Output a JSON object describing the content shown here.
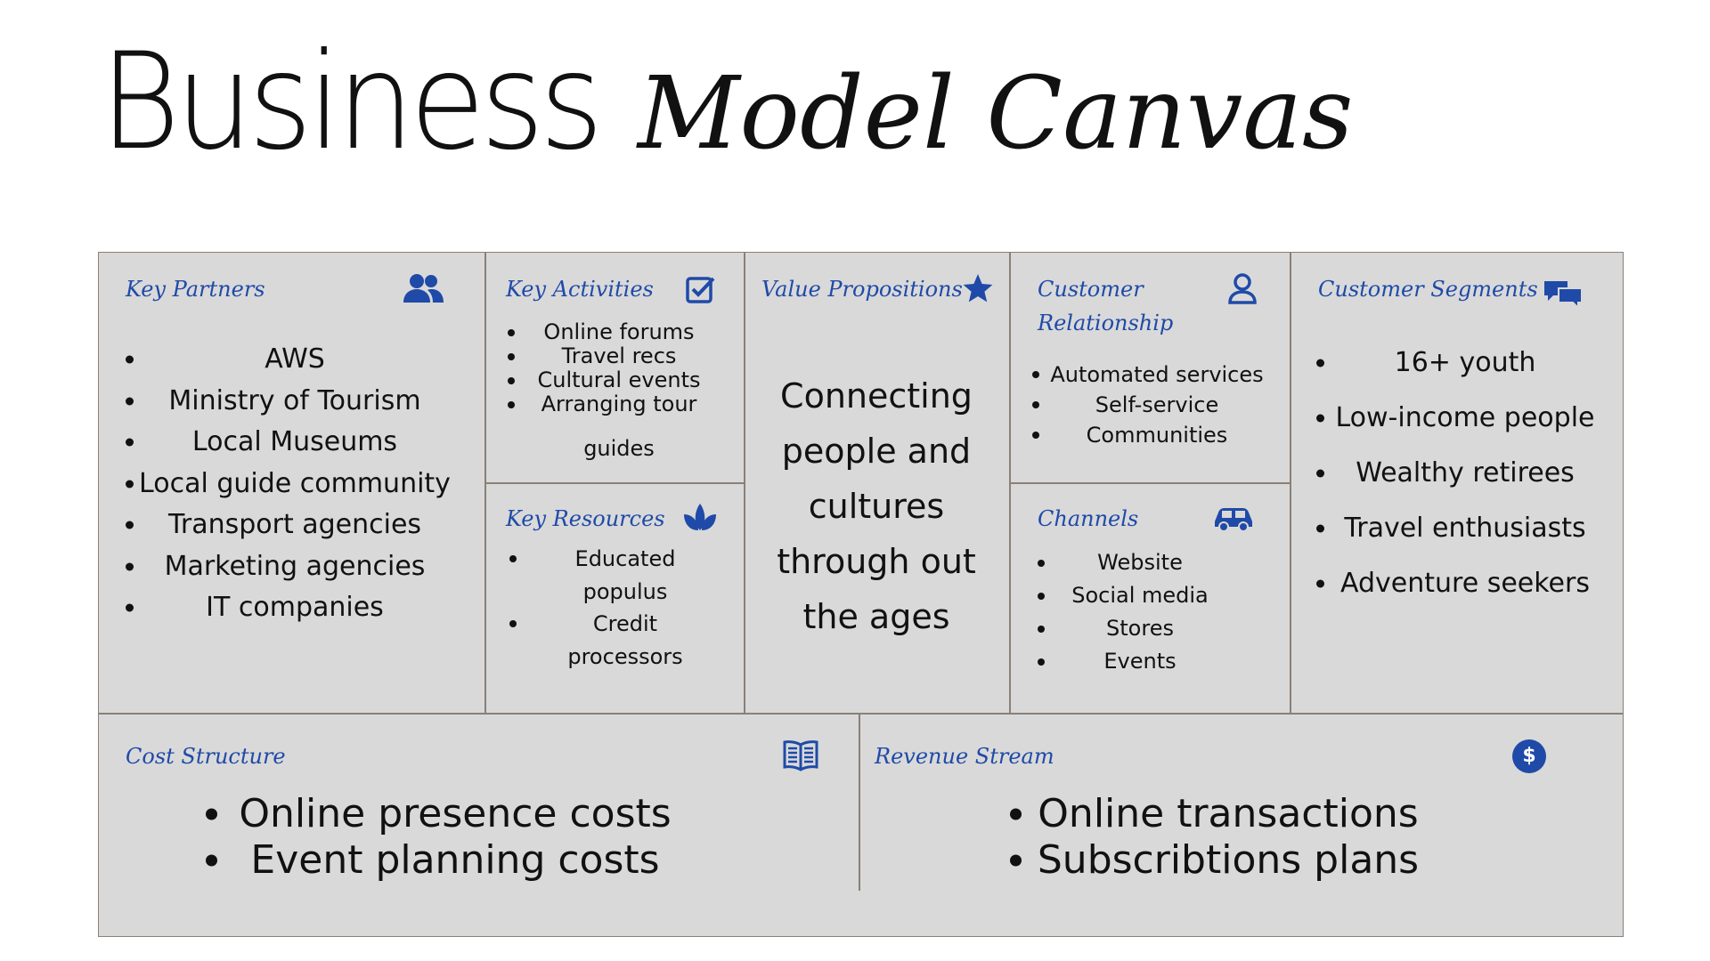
{
  "title": {
    "part1": "Business",
    "part2": "Model Canvas"
  },
  "key_partners": {
    "heading": "Key Partners",
    "icon": "people-icon",
    "items": [
      "AWS",
      "Ministry of Tourism",
      "Local Museums",
      "Local guide community",
      "Transport agencies",
      "Marketing agencies",
      "IT companies"
    ]
  },
  "key_activities": {
    "heading": "Key Activities",
    "icon": "checkbox-icon",
    "items": [
      "Online forums",
      "Travel recs",
      "Cultural events",
      "Arranging tour"
    ],
    "items_extra": "guides"
  },
  "key_resources": {
    "heading": "Key Resources",
    "icon": "leaf-icon",
    "items": [
      "Educated",
      "Credit"
    ],
    "items_extra": [
      "populus",
      "processors"
    ]
  },
  "value_propositions": {
    "heading": "Value Propositions",
    "icon": "star-icon",
    "text": "Connecting\npeople and\ncultures\nthrough out\nthe ages"
  },
  "customer_relationship": {
    "heading_line1": "Customer",
    "heading_line2": "Relationship",
    "icon": "person-icon",
    "items": [
      "Automated services",
      "Self-service",
      "Communities"
    ]
  },
  "channels": {
    "heading": "Channels",
    "icon": "car-icon",
    "items": [
      "Website",
      "Social media",
      "Stores",
      "Events"
    ]
  },
  "customer_segments": {
    "heading": "Customer Segments",
    "icon": "chat-icon",
    "items": [
      "16+ youth",
      "Low-income people",
      "Wealthy retirees",
      "Travel enthusiasts",
      "Adventure seekers"
    ]
  },
  "cost_structure": {
    "heading": "Cost Structure",
    "icon": "book-icon",
    "items": [
      "Online presence costs",
      "Event planning costs"
    ]
  },
  "revenue_stream": {
    "heading": "Revenue Stream",
    "icon": "dollar-icon",
    "icon_glyph": "$",
    "items": [
      "Online transactions",
      "Subscribtions plans"
    ]
  },
  "colors": {
    "accent": "#1f4aa8",
    "canvas_bg": "#d9d9d9",
    "border": "#8a8077"
  }
}
